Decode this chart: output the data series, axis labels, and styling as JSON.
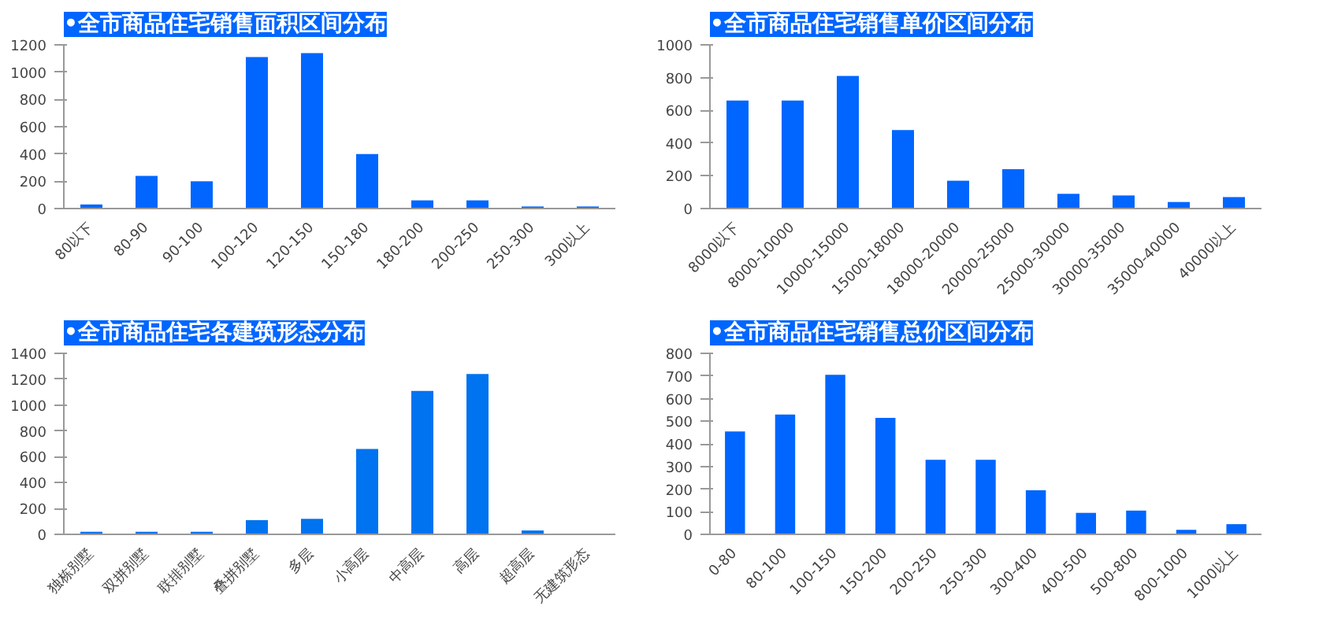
{
  "chart_data": [
    {
      "type": "bar",
      "title": "•全市商品住宅销售面积区间分布",
      "categories": [
        "80以下",
        "80-90",
        "90-100",
        "100-120",
        "120-150",
        "150-180",
        "180-200",
        "200-250",
        "250-300",
        "300以上"
      ],
      "values": [
        30,
        240,
        200,
        1110,
        1140,
        400,
        60,
        60,
        15,
        15
      ],
      "color": "#0066ff",
      "ylim": [
        0,
        1200
      ],
      "yticks": [
        0,
        200,
        400,
        600,
        800,
        1000,
        1200
      ],
      "grid": false
    },
    {
      "type": "bar",
      "title": "•全市商品住宅销售单价区间分布",
      "categories": [
        "8000以下",
        "8000-10000",
        "10000-15000",
        "15000-18000",
        "18000-20000",
        "20000-25000",
        "25000-30000",
        "30000-35000",
        "35000-40000",
        "40000以上"
      ],
      "values": [
        660,
        660,
        810,
        480,
        170,
        240,
        90,
        80,
        40,
        70
      ],
      "color": "#0066ff",
      "ylim": [
        0,
        1000
      ],
      "yticks": [
        0,
        200,
        400,
        600,
        800,
        1000
      ],
      "grid": false
    },
    {
      "type": "bar",
      "title": "•全市商品住宅各建筑形态分布",
      "categories": [
        "独栋别墅",
        "双拼别墅",
        "联排别墅",
        "叠拼别墅",
        "多层",
        "小高层",
        "中高层",
        "高层",
        "超高层",
        "无建筑形态"
      ],
      "values": [
        20,
        20,
        20,
        110,
        120,
        660,
        1110,
        1240,
        30,
        0
      ],
      "color": "#0073f0",
      "ylim": [
        0,
        1400
      ],
      "yticks": [
        0,
        200,
        400,
        600,
        800,
        1000,
        1200,
        1400
      ],
      "grid": false
    },
    {
      "type": "bar",
      "title": "•全市商品住宅销售总价区间分布",
      "categories": [
        "0-80",
        "80-100",
        "100-150",
        "150-200",
        "200-250",
        "250-300",
        "300-400",
        "400-500",
        "500-800",
        "800-1000",
        "1000以上"
      ],
      "values": [
        455,
        530,
        705,
        515,
        330,
        330,
        195,
        95,
        105,
        20,
        45
      ],
      "color": "#0066ff",
      "ylim": [
        0,
        800
      ],
      "yticks": [
        0,
        100,
        200,
        300,
        400,
        500,
        600,
        700,
        800
      ],
      "grid": false
    }
  ]
}
